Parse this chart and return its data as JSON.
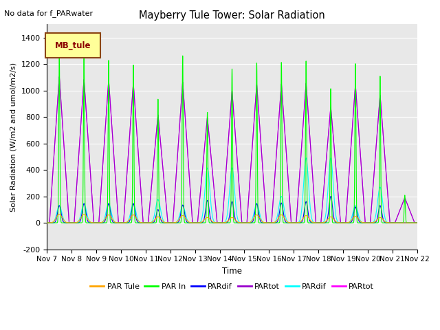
{
  "title": "Mayberry Tule Tower: Solar Radiation",
  "note": "No data for f_PARwater",
  "ylabel": "Solar Radiation (W/m2 and umol/m2/s)",
  "xlabel": "Time",
  "n_days": 15,
  "ylim": [
    -200,
    1500
  ],
  "yticks": [
    -200,
    0,
    200,
    400,
    600,
    800,
    1000,
    1200,
    1400
  ],
  "xtick_labels": [
    "Nov 7",
    "Nov 8",
    "Nov 9",
    "Nov 10",
    "Nov 11",
    "Nov 12",
    "Nov 13",
    "Nov 14",
    "Nov 15",
    "Nov 16",
    "Nov 17",
    "Nov 18",
    "Nov 19",
    "Nov 20",
    "Nov 21",
    "Nov 22"
  ],
  "legend_entries": [
    {
      "label": "PAR Tule",
      "color": "#FFA500"
    },
    {
      "label": "PAR In",
      "color": "#00FF00"
    },
    {
      "label": "PARdif",
      "color": "#0000FF"
    },
    {
      "label": "PARtot",
      "color": "#9900CC"
    },
    {
      "label": "PARdif",
      "color": "#00FFFF"
    },
    {
      "label": "PARtot",
      "color": "#FF00FF"
    }
  ],
  "legend_box_label": "MB_tule",
  "legend_box_color": "#FFFF99",
  "legend_box_border": "#8B4513",
  "background_color": "#E8E8E8",
  "grid_color": "#FFFFFF",
  "day_peaks": {
    "PAR_In": [
      1270,
      1250,
      1235,
      1200,
      940,
      1270,
      840,
      1170,
      1215,
      1220,
      1230,
      1020,
      1210,
      1115,
      210
    ],
    "PAR_Tule": [
      65,
      65,
      60,
      60,
      45,
      55,
      40,
      40,
      60,
      60,
      55,
      45,
      50,
      40,
      0
    ],
    "PARtot_m": [
      1110,
      1090,
      1085,
      1060,
      820,
      1070,
      800,
      1000,
      1050,
      1055,
      1060,
      880,
      1050,
      970,
      190
    ],
    "PARdif_b": [
      130,
      145,
      145,
      145,
      100,
      135,
      170,
      160,
      145,
      150,
      160,
      200,
      120,
      130,
      0
    ],
    "PARdif_c": [
      130,
      145,
      145,
      145,
      175,
      130,
      415,
      415,
      145,
      200,
      490,
      490,
      130,
      270,
      0
    ],
    "PARtot_p": [
      1110,
      1090,
      1085,
      1060,
      820,
      1070,
      800,
      1000,
      1050,
      1055,
      1060,
      880,
      1050,
      970,
      190
    ]
  }
}
